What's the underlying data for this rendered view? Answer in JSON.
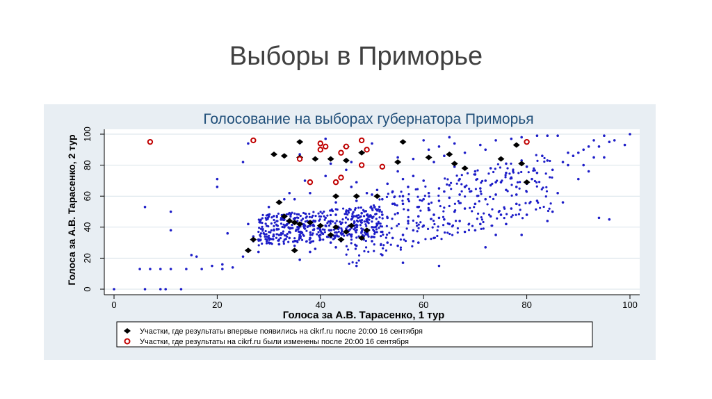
{
  "slide": {
    "title": "Выборы в Приморье"
  },
  "colors": {
    "panel": "#e8eef3",
    "title": "#1f4e79",
    "blue_series": "#1d1dc8",
    "black_series": "#000000",
    "red_series": "#c00000",
    "text": "#000000"
  },
  "chart_data": {
    "type": "scatter",
    "title": "Голосование на выборах губернатора Приморья",
    "xlabel": "Голоса за А.В. Тарасенко, 1 тур",
    "ylabel": "Голоса за А.В. Тарасенко, 2 тур",
    "xlim": [
      0,
      100
    ],
    "ylim": [
      0,
      100
    ],
    "xticks": [
      "0",
      "20",
      "40",
      "60",
      "80",
      "100"
    ],
    "yticks": [
      "0",
      "20",
      "40",
      "60",
      "80",
      "100"
    ],
    "grid": true,
    "legend_position": "bottom",
    "series": [
      {
        "marker": "dot",
        "color": "#1d1dc8",
        "points": [
          [
            0,
            0
          ],
          [
            6,
            0
          ],
          [
            9,
            0
          ],
          [
            10,
            0
          ],
          [
            13,
            0
          ],
          [
            5,
            13
          ],
          [
            7,
            13
          ],
          [
            9,
            13
          ],
          [
            11,
            13
          ],
          [
            14,
            13
          ],
          [
            17,
            13
          ],
          [
            16,
            21
          ],
          [
            15,
            22
          ],
          [
            19,
            15
          ],
          [
            21,
            13
          ],
          [
            21,
            16
          ],
          [
            23,
            14
          ],
          [
            6,
            53
          ],
          [
            11,
            50
          ],
          [
            11,
            38
          ],
          [
            20,
            71
          ],
          [
            20,
            66
          ],
          [
            25,
            21
          ],
          [
            28,
            24
          ],
          [
            27,
            31
          ],
          [
            22,
            36
          ],
          [
            26,
            42
          ],
          [
            30,
            48
          ],
          [
            33,
            58
          ],
          [
            34,
            62
          ],
          [
            37,
            70
          ],
          [
            41,
            73
          ],
          [
            47,
            69
          ],
          [
            42,
            81
          ],
          [
            36,
            87
          ],
          [
            46,
            82
          ],
          [
            55,
            85
          ],
          [
            50,
            94
          ],
          [
            41,
            97
          ],
          [
            26,
            94
          ],
          [
            60,
            96
          ],
          [
            61,
            90
          ],
          [
            63,
            92
          ],
          [
            65,
            98
          ],
          [
            71,
            93
          ],
          [
            74,
            96
          ],
          [
            77,
            97
          ],
          [
            79,
            98
          ],
          [
            82,
            99
          ],
          [
            84,
            99
          ],
          [
            86,
            99
          ],
          [
            95,
            99
          ],
          [
            96,
            95
          ],
          [
            99,
            93
          ],
          [
            92,
            92
          ],
          [
            93,
            96
          ],
          [
            93,
            85
          ],
          [
            91,
            80
          ],
          [
            67,
            71
          ],
          [
            70,
            74
          ],
          [
            74,
            69
          ],
          [
            81,
            71
          ],
          [
            88,
            80
          ],
          [
            87,
            56
          ],
          [
            80,
            48
          ],
          [
            79,
            35
          ],
          [
            74,
            35
          ],
          [
            70,
            38
          ],
          [
            75,
            48
          ],
          [
            65,
            42
          ],
          [
            59,
            30
          ],
          [
            52,
            22
          ],
          [
            56,
            17
          ],
          [
            47,
            15
          ],
          [
            36,
            19
          ],
          [
            38,
            24
          ],
          [
            63,
            15
          ],
          [
            72,
            27
          ],
          [
            94,
            46
          ],
          [
            96,
            45
          ],
          [
            84,
            44
          ],
          [
            78,
            61
          ],
          [
            78,
            55
          ],
          [
            57,
            66
          ],
          [
            56,
            60
          ],
          [
            54,
            55
          ],
          [
            52,
            58
          ],
          [
            50,
            52
          ],
          [
            48,
            49
          ],
          [
            46,
            45
          ],
          [
            44,
            42
          ],
          [
            42,
            38
          ],
          [
            40,
            35
          ],
          [
            38,
            33
          ],
          [
            35,
            31
          ],
          [
            32,
            29
          ],
          [
            30,
            33
          ],
          [
            29,
            36
          ],
          [
            31,
            38
          ],
          [
            33,
            40
          ],
          [
            36,
            42
          ],
          [
            39,
            44
          ],
          [
            41,
            46
          ],
          [
            43,
            48
          ],
          [
            45,
            50
          ],
          [
            47,
            47
          ],
          [
            49,
            44
          ],
          [
            51,
            42
          ],
          [
            53,
            46
          ],
          [
            55,
            49
          ],
          [
            57,
            51
          ],
          [
            59,
            53
          ],
          [
            61,
            55
          ],
          [
            63,
            57
          ],
          [
            65,
            59
          ],
          [
            67,
            61
          ],
          [
            69,
            63
          ],
          [
            71,
            65
          ],
          [
            73,
            67
          ],
          [
            75,
            69
          ],
          [
            77,
            72
          ],
          [
            62,
            48
          ],
          [
            64,
            45
          ],
          [
            66,
            50
          ],
          [
            60,
            41
          ],
          [
            58,
            38
          ],
          [
            56,
            35
          ],
          [
            54,
            33
          ],
          [
            52,
            37
          ],
          [
            50,
            40
          ],
          [
            48,
            37
          ],
          [
            46,
            34
          ],
          [
            44,
            31
          ],
          [
            42,
            30
          ],
          [
            40,
            32
          ],
          [
            38,
            30
          ],
          [
            36,
            35
          ],
          [
            34,
            37
          ],
          [
            32,
            35
          ],
          [
            30,
            30
          ],
          [
            28,
            32
          ],
          [
            27,
            34
          ],
          [
            37,
            39
          ],
          [
            41,
            41
          ],
          [
            45,
            39
          ],
          [
            49,
            36
          ],
          [
            53,
            30
          ],
          [
            55,
            28
          ],
          [
            57,
            44
          ],
          [
            59,
            47
          ],
          [
            61,
            62
          ],
          [
            63,
            65
          ],
          [
            65,
            67
          ],
          [
            60,
            70
          ],
          [
            58,
            73
          ],
          [
            55,
            76
          ],
          [
            52,
            78
          ],
          [
            48,
            80
          ],
          [
            45,
            77
          ],
          [
            44,
            72
          ],
          [
            46,
            66
          ],
          [
            49,
            62
          ],
          [
            51,
            64
          ],
          [
            53,
            68
          ],
          [
            56,
            71
          ],
          [
            68,
            52
          ],
          [
            70,
            55
          ],
          [
            72,
            58
          ],
          [
            74,
            61
          ],
          [
            76,
            64
          ],
          [
            78,
            66
          ],
          [
            80,
            68
          ],
          [
            82,
            75
          ],
          [
            85,
            77
          ],
          [
            87,
            82
          ],
          [
            89,
            86
          ],
          [
            90,
            88
          ],
          [
            83,
            86
          ],
          [
            79,
            83
          ],
          [
            76,
            81
          ],
          [
            73,
            78
          ],
          [
            70,
            76
          ],
          [
            66,
            79
          ],
          [
            62,
            82
          ],
          [
            64,
            86
          ],
          [
            68,
            88
          ],
          [
            72,
            90
          ],
          [
            58,
            84
          ],
          [
            66,
            94
          ],
          [
            34,
            49
          ],
          [
            33,
            45
          ],
          [
            35,
            28
          ],
          [
            39,
            26
          ],
          [
            43,
            27
          ],
          [
            47,
            28
          ],
          [
            50,
            31
          ],
          [
            34,
            33
          ],
          [
            38,
            41
          ],
          [
            42,
            44
          ],
          [
            40,
            38
          ],
          [
            36,
            37
          ],
          [
            44,
            36
          ],
          [
            48,
            43
          ],
          [
            52,
            48
          ],
          [
            56,
            55
          ],
          [
            60,
            58
          ],
          [
            64,
            63
          ],
          [
            68,
            66
          ],
          [
            72,
            70
          ],
          [
            76,
            75
          ],
          [
            80,
            79
          ],
          [
            84,
            83
          ],
          [
            88,
            88
          ],
          [
            91,
            90
          ],
          [
            94,
            92
          ],
          [
            97,
            96
          ],
          [
            100,
            100
          ],
          [
            25,
            82
          ],
          [
            38,
            62
          ],
          [
            35,
            58
          ],
          [
            30,
            53
          ],
          [
            43,
            56
          ],
          [
            47,
            57
          ],
          [
            50,
            61
          ],
          [
            54,
            63
          ],
          [
            57,
            58
          ],
          [
            61,
            51
          ],
          [
            63,
            46
          ],
          [
            67,
            44
          ],
          [
            71,
            42
          ],
          [
            73,
            47
          ],
          [
            77,
            52
          ],
          [
            82,
            57
          ],
          [
            86,
            62
          ],
          [
            90,
            71
          ],
          [
            92,
            76
          ],
          [
            95,
            85
          ],
          [
            85,
            50
          ],
          [
            76,
            42
          ],
          [
            68,
            37
          ],
          [
            62,
            33
          ],
          [
            58,
            31
          ]
        ]
      },
      {
        "marker": "diamond",
        "color": "#000000",
        "name": "Участки, где результаты впервые появились на cikrf.ru после 20:00 16 сентября",
        "points": [
          [
            26,
            25
          ],
          [
            27,
            32
          ],
          [
            32,
            56
          ],
          [
            33,
            47
          ],
          [
            34,
            44
          ],
          [
            35,
            43
          ],
          [
            36,
            42
          ],
          [
            38,
            43
          ],
          [
            40,
            41
          ],
          [
            42,
            35
          ],
          [
            43,
            40
          ],
          [
            44,
            32
          ],
          [
            45,
            37
          ],
          [
            46,
            41
          ],
          [
            48,
            33
          ],
          [
            49,
            38
          ],
          [
            35,
            25
          ],
          [
            31,
            87
          ],
          [
            33,
            86
          ],
          [
            36,
            85
          ],
          [
            39,
            84
          ],
          [
            42,
            84
          ],
          [
            45,
            83
          ],
          [
            45,
            92
          ],
          [
            48,
            88
          ],
          [
            55,
            82
          ],
          [
            56,
            95
          ],
          [
            61,
            85
          ],
          [
            65,
            87
          ],
          [
            66,
            81
          ],
          [
            68,
            78
          ],
          [
            75,
            84
          ],
          [
            78,
            93
          ],
          [
            79,
            81
          ],
          [
            80,
            69
          ],
          [
            36,
            95
          ],
          [
            43,
            60
          ],
          [
            47,
            60
          ],
          [
            51,
            60
          ]
        ]
      },
      {
        "marker": "ring",
        "color": "#c00000",
        "name": "Участки, где результаты на cikrf.ru были изменены после 20:00 16 сентября",
        "points": [
          [
            7,
            95
          ],
          [
            27,
            96
          ],
          [
            36,
            84
          ],
          [
            40,
            94
          ],
          [
            40,
            90
          ],
          [
            41,
            92
          ],
          [
            44,
            88
          ],
          [
            45,
            92
          ],
          [
            48,
            80
          ],
          [
            48,
            96
          ],
          [
            49,
            90
          ],
          [
            52,
            79
          ],
          [
            38,
            69
          ],
          [
            43,
            69
          ],
          [
            44,
            72
          ],
          [
            80,
            95
          ]
        ]
      }
    ]
  }
}
